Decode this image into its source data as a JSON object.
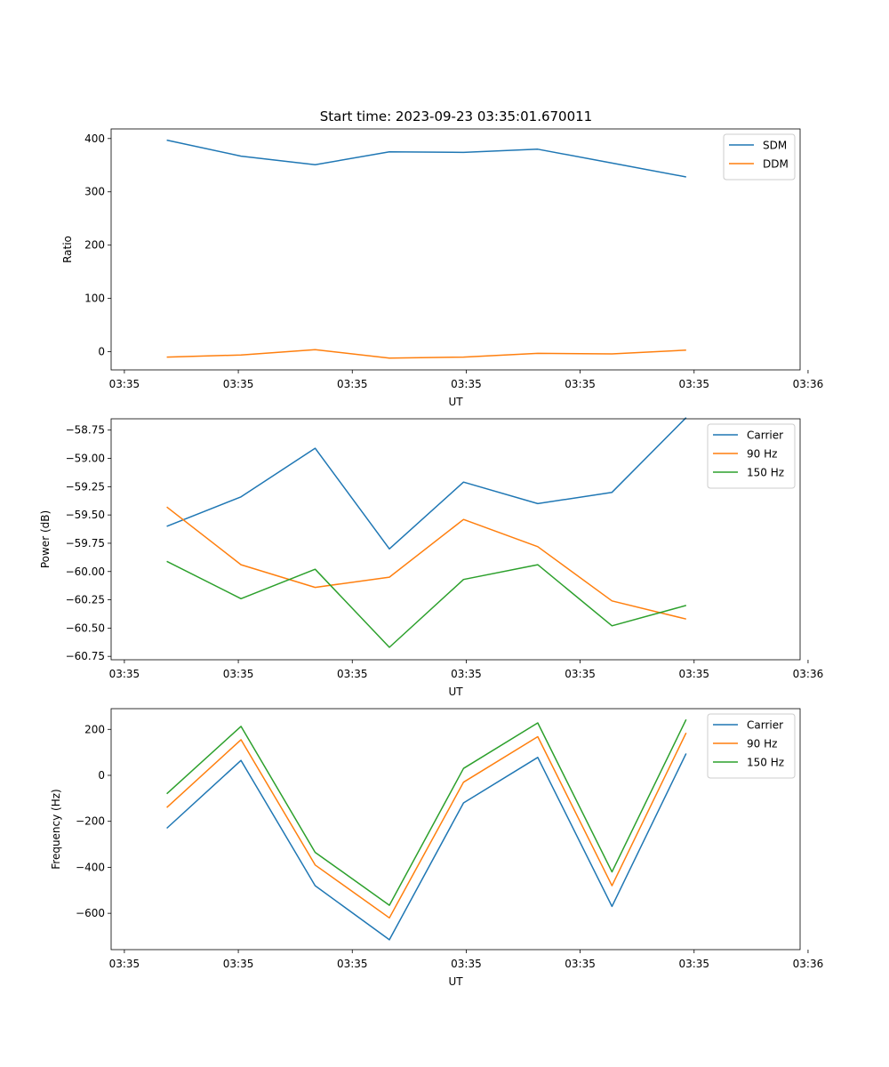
{
  "figure_title": "Start time: 2023-09-23 03:35:01.670011",
  "colors": {
    "blue": "#1f77b4",
    "orange": "#ff7f0e",
    "green": "#2ca02c"
  },
  "chart_data": [
    {
      "type": "line",
      "title": "Start time: 2023-09-23 03:35:01.670011",
      "xlabel": "UT",
      "ylabel": "Ratio",
      "x": [
        0.92,
        1.48,
        2.04,
        2.6,
        3.16,
        3.72,
        4.28,
        4.84
      ],
      "xlim": [
        0.5,
        5.7
      ],
      "x_ticks": [
        0.6,
        1.46,
        2.32,
        3.18,
        4.04,
        4.9,
        5.76
      ],
      "x_tick_labels": [
        "03:35",
        "03:35",
        "03:35",
        "03:35",
        "03:35",
        "03:35",
        "03:36"
      ],
      "ylim": [
        -34,
        418
      ],
      "y_ticks": [
        0,
        100,
        200,
        300,
        400
      ],
      "y_tick_labels": [
        "0",
        "100",
        "200",
        "300",
        "400"
      ],
      "legend_position": "top-right",
      "series": [
        {
          "name": "SDM",
          "color": "#1f77b4",
          "values": [
            397,
            367,
            351,
            375,
            374,
            380,
            354,
            328
          ]
        },
        {
          "name": "DDM",
          "color": "#ff7f0e",
          "values": [
            -10,
            -6,
            4,
            -12,
            -10,
            -3,
            -4,
            3
          ]
        }
      ]
    },
    {
      "type": "line",
      "title": "",
      "xlabel": "UT",
      "ylabel": "Power (dB)",
      "x": [
        0.92,
        1.48,
        2.04,
        2.6,
        3.16,
        3.72,
        4.28,
        4.84
      ],
      "xlim": [
        0.5,
        5.7
      ],
      "x_ticks": [
        0.6,
        1.46,
        2.32,
        3.18,
        4.04,
        4.9,
        5.76
      ],
      "x_tick_labels": [
        "03:35",
        "03:35",
        "03:35",
        "03:35",
        "03:35",
        "03:35",
        "03:36"
      ],
      "ylim": [
        -60.78,
        -58.65
      ],
      "y_ticks": [
        -58.75,
        -59.0,
        -59.25,
        -59.5,
        -59.75,
        -60.0,
        -60.25,
        -60.5,
        -60.75
      ],
      "y_tick_labels": [
        "−58.75",
        "−59.00",
        "−59.25",
        "−59.50",
        "−59.75",
        "−60.00",
        "−60.25",
        "−60.50",
        "−60.75"
      ],
      "legend_position": "top-right",
      "series": [
        {
          "name": "Carrier",
          "color": "#1f77b4",
          "values": [
            -59.6,
            -59.34,
            -58.91,
            -59.8,
            -59.21,
            -59.4,
            -59.3,
            -58.64
          ]
        },
        {
          "name": "90 Hz",
          "color": "#ff7f0e",
          "values": [
            -59.43,
            -59.94,
            -60.14,
            -60.05,
            -59.54,
            -59.78,
            -60.26,
            -60.42
          ]
        },
        {
          "name": "150 Hz",
          "color": "#2ca02c",
          "values": [
            -59.91,
            -60.24,
            -59.98,
            -60.67,
            -60.07,
            -59.94,
            -60.48,
            -60.3
          ]
        }
      ]
    },
    {
      "type": "line",
      "title": "",
      "xlabel": "UT",
      "ylabel": "Frequency (Hz)",
      "x": [
        0.92,
        1.48,
        2.04,
        2.6,
        3.16,
        3.72,
        4.28,
        4.84
      ],
      "xlim": [
        0.5,
        5.7
      ],
      "x_ticks": [
        0.6,
        1.46,
        2.32,
        3.18,
        4.04,
        4.9,
        5.76
      ],
      "x_tick_labels": [
        "03:35",
        "03:35",
        "03:35",
        "03:35",
        "03:35",
        "03:35",
        "03:36"
      ],
      "ylim": [
        -758,
        290
      ],
      "y_ticks": [
        200,
        0,
        -200,
        -400,
        -600
      ],
      "y_tick_labels": [
        "200",
        "0",
        "−200",
        "−400",
        "−600"
      ],
      "legend_position": "top-right",
      "series": [
        {
          "name": "Carrier",
          "color": "#1f77b4",
          "values": [
            -230,
            65,
            -480,
            -715,
            -120,
            78,
            -570,
            95
          ]
        },
        {
          "name": "90 Hz",
          "color": "#ff7f0e",
          "values": [
            -140,
            155,
            -390,
            -620,
            -30,
            168,
            -480,
            185
          ]
        },
        {
          "name": "150 Hz",
          "color": "#2ca02c",
          "values": [
            -80,
            213,
            -335,
            -565,
            30,
            228,
            -420,
            243
          ]
        }
      ]
    }
  ]
}
